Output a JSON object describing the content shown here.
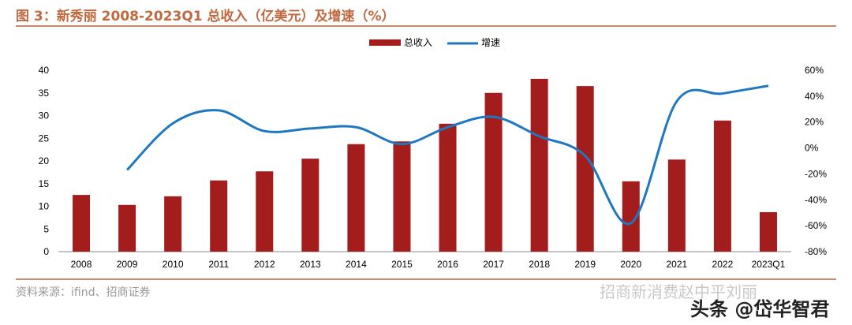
{
  "title": "图 3：新秀丽 2008-2023Q1 总收入（亿美元）及增速（%）",
  "source": "资料来源：ifind、招商证券",
  "watermarks": [
    "招商新消费赵中平刘丽",
    "头条 @岱华智君"
  ],
  "chart_data": {
    "type": "bar+line",
    "title": "图 3：新秀丽 2008-2023Q1 总收入（亿美元）及增速（%）",
    "categories": [
      "2008",
      "2009",
      "2010",
      "2011",
      "2012",
      "2013",
      "2014",
      "2015",
      "2016",
      "2017",
      "2018",
      "2019",
      "2020",
      "2021",
      "2022",
      "2023Q1"
    ],
    "series": [
      {
        "name": "总收入",
        "type": "bar",
        "axis": "left",
        "color": "#a31d1d",
        "values": [
          12.5,
          10.3,
          12.2,
          15.7,
          17.7,
          20.5,
          23.7,
          24.3,
          28.2,
          35.0,
          38.1,
          36.5,
          15.5,
          20.3,
          28.9,
          8.7
        ]
      },
      {
        "name": "增速",
        "type": "line",
        "axis": "right",
        "color": "#1f77c0",
        "unit": "%",
        "values": [
          null,
          -17,
          19,
          29,
          13,
          15,
          16,
          3,
          16,
          24,
          9,
          -6,
          -58,
          36,
          42,
          48
        ]
      }
    ],
    "ylim_left": [
      0,
      40
    ],
    "yticks_left": [
      "0",
      "5",
      "10",
      "15",
      "20",
      "25",
      "30",
      "35",
      "40"
    ],
    "ylim_right": [
      -80,
      60
    ],
    "yticks_right": [
      "-80%",
      "-60%",
      "-40%",
      "-20%",
      "0%",
      "20%",
      "40%",
      "60%"
    ],
    "grid": false,
    "legend": "top-center"
  }
}
